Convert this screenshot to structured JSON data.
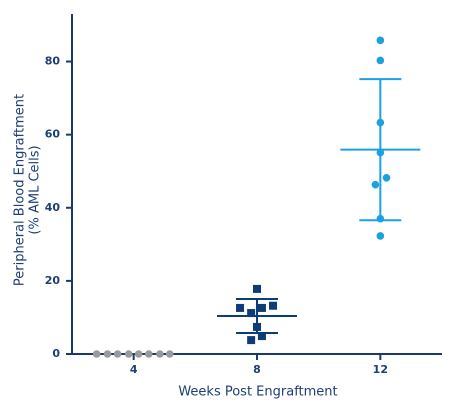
{
  "chart_data": {
    "type": "scatter",
    "x_label": "Weeks Post Engraftment",
    "y_label": [
      "Peripheral Blood Engraftment",
      "(% AML Cells)"
    ],
    "xlim": [
      2,
      14
    ],
    "xticks": [
      4,
      8,
      12
    ],
    "ylim": [
      0,
      93
    ],
    "yticks": [
      0,
      20,
      40,
      60,
      80
    ],
    "axis_color": "#1a3a6b",
    "series": [
      {
        "color": "#9a9a9a",
        "marker": "circle",
        "x": [
          2.8,
          3.15,
          3.48,
          3.84,
          4.16,
          4.49,
          4.85,
          5.17
        ],
        "values": [
          0,
          0,
          0,
          0,
          0,
          0,
          0,
          0
        ]
      },
      {
        "color": "#0d3c78",
        "marker": "square",
        "group_x": 8,
        "mean": 10.4,
        "sd": 4.65,
        "x": [
          8,
          7.45,
          7.81,
          8.16,
          8.52,
          8,
          7.81,
          8.16
        ],
        "values": [
          17.8,
          12.6,
          11.2,
          12.6,
          13.2,
          7.4,
          3.8,
          4.9
        ]
      },
      {
        "color": "#1ba1e2",
        "marker": "circle",
        "group_x": 12,
        "mean": 55.9,
        "sd": 19.3,
        "x": [
          12,
          12,
          12,
          12,
          11.84,
          12.2,
          12,
          12
        ],
        "values": [
          85.8,
          80.3,
          63.3,
          55.1,
          46.3,
          48.2,
          37.0,
          32.3
        ]
      }
    ]
  }
}
